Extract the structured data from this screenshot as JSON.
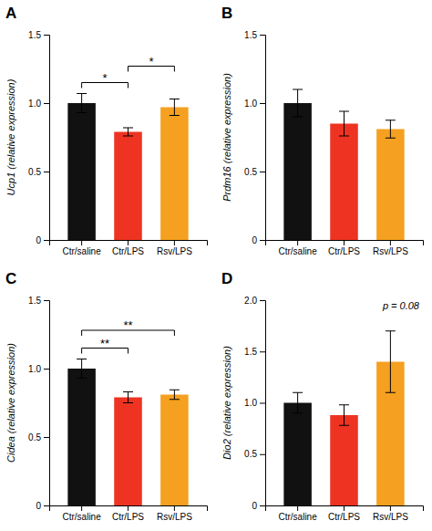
{
  "chart_data": [
    {
      "type": "bar",
      "title": "A",
      "ylabel": "Ucp1 (relative expression)",
      "categories": [
        "Ctr/saline",
        "Ctr/LPS",
        "Rsv/LPS"
      ],
      "values": [
        1.0,
        0.79,
        0.97
      ],
      "errors": [
        0.07,
        0.03,
        0.06
      ],
      "colors": [
        "#111111",
        "#ee3322",
        "#f5a020"
      ],
      "ylim": [
        0,
        1.5
      ],
      "yticks": [
        0,
        0.5,
        {
          "value": 1.0,
          "label": "1.0"
        },
        1.5
      ],
      "significance": [
        {
          "x1": 0,
          "x2": 1,
          "y": 1.15,
          "text": "*"
        },
        {
          "x1": 1,
          "x2": 2,
          "y": 1.27,
          "text": "*"
        }
      ]
    },
    {
      "type": "bar",
      "title": "B",
      "ylabel": "Prdm16 (relative expression)",
      "categories": [
        "Ctr/saline",
        "Ctr/LPS",
        "Rsv/LPS"
      ],
      "values": [
        1.0,
        0.85,
        0.81
      ],
      "errors": [
        0.1,
        0.09,
        0.065
      ],
      "colors": [
        "#111111",
        "#ee3322",
        "#f5a020"
      ],
      "ylim": [
        0,
        1.5
      ],
      "yticks": [
        0,
        0.5,
        {
          "value": 1.0,
          "label": "1.0"
        },
        1.5
      ]
    },
    {
      "type": "bar",
      "title": "C",
      "ylabel": "Cidea (relative expression)",
      "categories": [
        "Ctr/saline",
        "Ctr/LPS",
        "Rsv/LPS"
      ],
      "values": [
        1.0,
        0.79,
        0.81
      ],
      "errors": [
        0.07,
        0.04,
        0.035
      ],
      "colors": [
        "#111111",
        "#ee3322",
        "#f5a020"
      ],
      "ylim": [
        0,
        1.5
      ],
      "yticks": [
        0,
        0.5,
        {
          "value": 1.0,
          "label": "1.0"
        },
        1.5
      ],
      "significance": [
        {
          "x1": 0,
          "x2": 1,
          "y": 1.15,
          "text": "**"
        },
        {
          "x1": 0,
          "x2": 2,
          "y": 1.28,
          "text": "**"
        }
      ]
    },
    {
      "type": "bar",
      "title": "D",
      "ylabel": "Dio2 (relative expression)",
      "categories": [
        "Ctr/saline",
        "Ctr/LPS",
        "Rsv/LPS"
      ],
      "values": [
        1.0,
        0.88,
        1.4
      ],
      "errors": [
        0.1,
        0.1,
        0.3
      ],
      "colors": [
        "#111111",
        "#ee3322",
        "#f5a020"
      ],
      "ylim": [
        0,
        2.0
      ],
      "yticks": [
        0,
        0.5,
        {
          "value": 1.0,
          "label": "1.0"
        },
        1.5,
        {
          "value": 2.0,
          "label": "2.0"
        }
      ],
      "annotation": "p = 0.08"
    }
  ]
}
